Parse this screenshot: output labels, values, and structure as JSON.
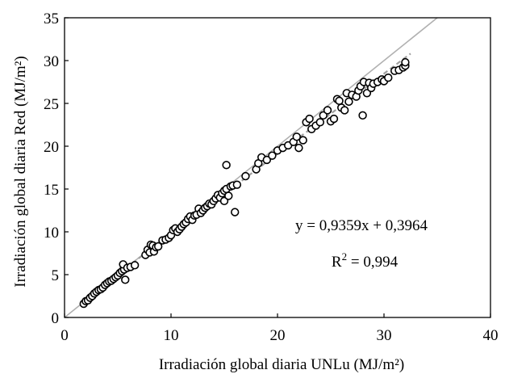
{
  "chart_data": {
    "type": "scatter",
    "xlabel": "Irradiación global diaria UNLu (MJ/m²)",
    "ylabel": "Irradiación global diaria Red (MJ/m²)",
    "xlim": [
      0,
      40
    ],
    "ylim": [
      0,
      35
    ],
    "xticks": [
      0,
      10,
      20,
      30,
      40
    ],
    "yticks": [
      0,
      5,
      10,
      15,
      20,
      25,
      30,
      35
    ],
    "grid": false,
    "marker": "open-circle",
    "points_color": "#000000",
    "fit_line_color": "#a0a0a0",
    "identity_line_color": "#b0b0b0",
    "fit": {
      "slope": 0.9359,
      "intercept": 0.3964
    },
    "annotations": {
      "equation": "y = 0,9359x + 0,3964",
      "r2_label": "R",
      "r2_sup": "2",
      "r2_value": " = 0,994"
    },
    "points": [
      [
        1.8,
        1.6
      ],
      [
        2.0,
        1.9
      ],
      [
        2.2,
        2.0
      ],
      [
        2.4,
        2.3
      ],
      [
        2.6,
        2.5
      ],
      [
        2.8,
        2.8
      ],
      [
        3.0,
        3.0
      ],
      [
        3.2,
        3.2
      ],
      [
        3.4,
        3.3
      ],
      [
        3.6,
        3.5
      ],
      [
        3.8,
        3.8
      ],
      [
        4.0,
        4.0
      ],
      [
        4.2,
        4.2
      ],
      [
        4.4,
        4.3
      ],
      [
        4.6,
        4.5
      ],
      [
        4.8,
        4.7
      ],
      [
        5.0,
        4.9
      ],
      [
        5.2,
        5.2
      ],
      [
        5.4,
        5.4
      ],
      [
        5.6,
        5.6
      ],
      [
        5.5,
        6.2
      ],
      [
        5.7,
        4.4
      ],
      [
        5.9,
        5.8
      ],
      [
        6.2,
        5.9
      ],
      [
        6.6,
        6.1
      ],
      [
        7.6,
        7.3
      ],
      [
        7.8,
        7.9
      ],
      [
        8.0,
        7.6
      ],
      [
        8.1,
        8.5
      ],
      [
        8.3,
        8.4
      ],
      [
        8.4,
        7.7
      ],
      [
        8.6,
        8.2
      ],
      [
        8.8,
        8.3
      ],
      [
        9.2,
        9.0
      ],
      [
        9.5,
        9.1
      ],
      [
        9.8,
        9.3
      ],
      [
        10.0,
        9.6
      ],
      [
        10.2,
        10.2
      ],
      [
        10.4,
        10.4
      ],
      [
        10.6,
        10.0
      ],
      [
        10.8,
        10.3
      ],
      [
        11.0,
        10.6
      ],
      [
        11.2,
        10.9
      ],
      [
        11.4,
        11.1
      ],
      [
        11.6,
        11.5
      ],
      [
        11.8,
        11.8
      ],
      [
        12.0,
        11.4
      ],
      [
        12.2,
        11.9
      ],
      [
        12.4,
        12.0
      ],
      [
        12.6,
        12.7
      ],
      [
        12.8,
        12.2
      ],
      [
        13.0,
        12.5
      ],
      [
        13.2,
        12.8
      ],
      [
        13.4,
        13.0
      ],
      [
        13.6,
        13.3
      ],
      [
        13.8,
        13.2
      ],
      [
        14.0,
        13.6
      ],
      [
        14.2,
        13.9
      ],
      [
        14.4,
        14.3
      ],
      [
        14.6,
        14.0
      ],
      [
        14.8,
        14.5
      ],
      [
        15.0,
        14.8
      ],
      [
        15.2,
        15.0
      ],
      [
        15.0,
        13.6
      ],
      [
        15.2,
        17.8
      ],
      [
        15.4,
        14.2
      ],
      [
        15.6,
        15.3
      ],
      [
        15.8,
        15.4
      ],
      [
        16.0,
        12.3
      ],
      [
        16.2,
        15.5
      ],
      [
        17.0,
        16.5
      ],
      [
        18.0,
        17.3
      ],
      [
        18.2,
        18.0
      ],
      [
        18.5,
        18.7
      ],
      [
        19.0,
        18.4
      ],
      [
        19.5,
        18.9
      ],
      [
        20.0,
        19.5
      ],
      [
        20.5,
        19.8
      ],
      [
        21.0,
        20.1
      ],
      [
        21.5,
        20.5
      ],
      [
        21.8,
        21.1
      ],
      [
        22.0,
        19.8
      ],
      [
        22.4,
        20.7
      ],
      [
        22.7,
        22.8
      ],
      [
        23.0,
        23.2
      ],
      [
        23.2,
        22.0
      ],
      [
        23.6,
        22.4
      ],
      [
        24.0,
        22.8
      ],
      [
        24.3,
        23.6
      ],
      [
        24.7,
        24.2
      ],
      [
        25.0,
        22.9
      ],
      [
        25.3,
        23.2
      ],
      [
        25.6,
        25.5
      ],
      [
        25.8,
        25.3
      ],
      [
        26.0,
        24.5
      ],
      [
        26.3,
        24.2
      ],
      [
        26.5,
        26.2
      ],
      [
        26.7,
        25.2
      ],
      [
        27.0,
        26.0
      ],
      [
        27.4,
        25.8
      ],
      [
        27.6,
        26.5
      ],
      [
        27.8,
        27.0
      ],
      [
        28.0,
        23.6
      ],
      [
        28.1,
        27.5
      ],
      [
        28.4,
        26.2
      ],
      [
        28.6,
        27.4
      ],
      [
        28.8,
        26.8
      ],
      [
        29.0,
        27.3
      ],
      [
        29.4,
        27.5
      ],
      [
        29.8,
        27.8
      ],
      [
        30.0,
        27.6
      ],
      [
        30.4,
        28.0
      ],
      [
        31.0,
        28.8
      ],
      [
        31.4,
        28.9
      ],
      [
        31.8,
        29.2
      ],
      [
        32.0,
        29.4
      ],
      [
        32.0,
        29.8
      ]
    ]
  }
}
